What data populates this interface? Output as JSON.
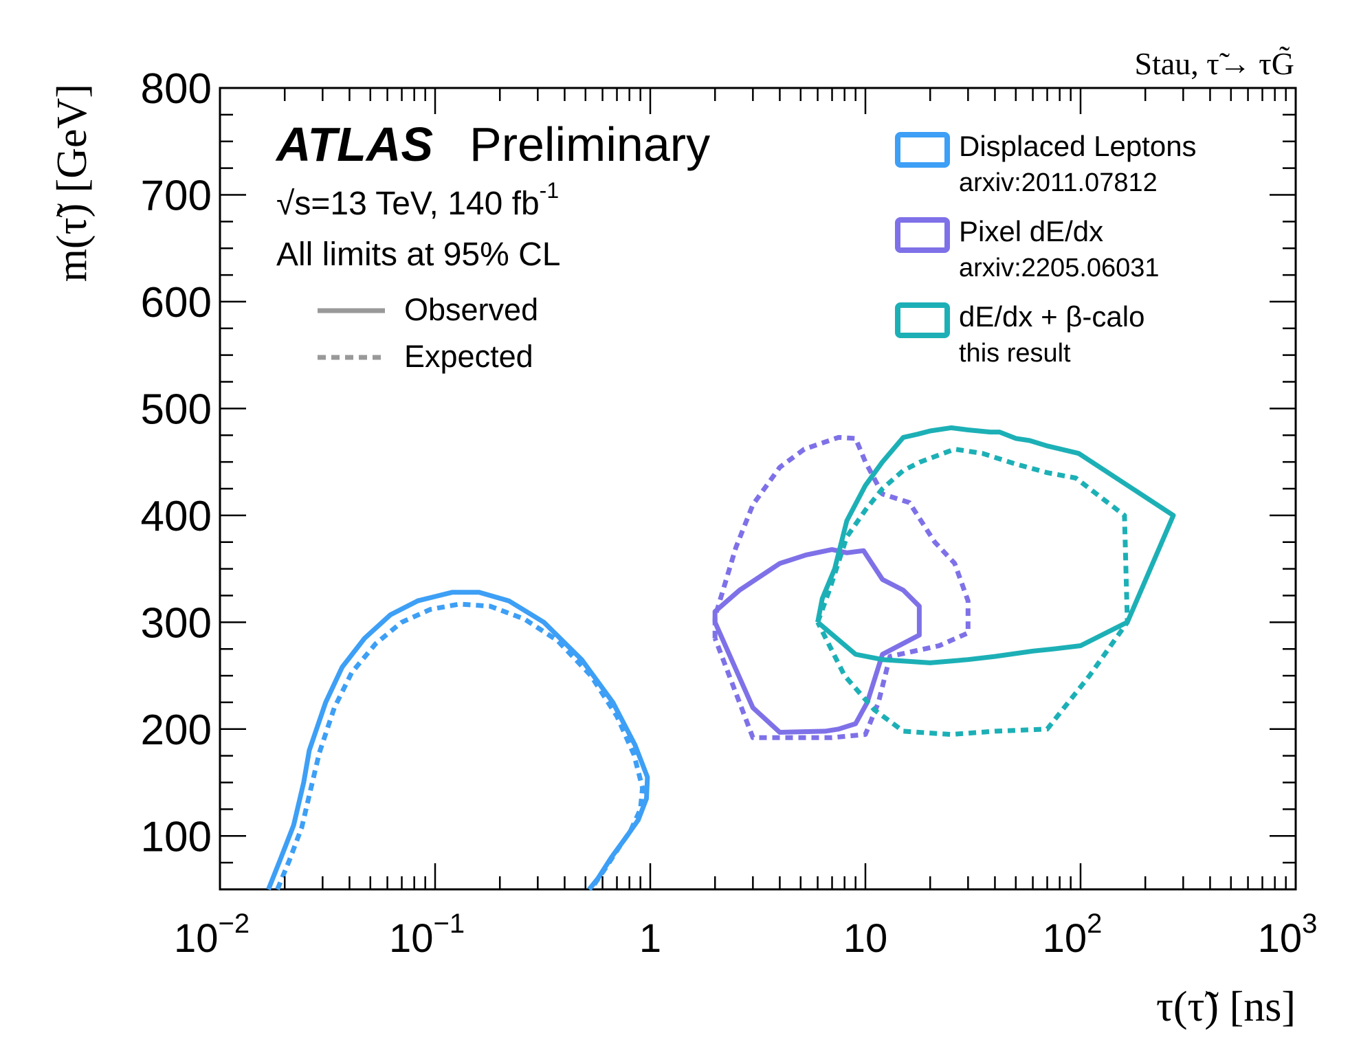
{
  "chart_data": {
    "type": "line",
    "title": "Stau, τ̃→ τG̃",
    "xlabel": "τ(τ̃) [ns]",
    "ylabel": "m(τ̃) [GeV]",
    "xscale": "log",
    "xlim": [
      0.01,
      1000
    ],
    "ylim": [
      50,
      800
    ],
    "x_tick_labels": [
      {
        "value": 0.01,
        "base": "10",
        "exp": "−2"
      },
      {
        "value": 0.1,
        "base": "10",
        "exp": "−1"
      },
      {
        "value": 1,
        "base": "1",
        "exp": ""
      },
      {
        "value": 10,
        "base": "10",
        "exp": ""
      },
      {
        "value": 100,
        "base": "10",
        "exp": "2"
      },
      {
        "value": 1000,
        "base": "10",
        "exp": "3"
      }
    ],
    "y_ticks": [
      100,
      200,
      300,
      400,
      500,
      600,
      700,
      800
    ],
    "atlas_label": "ATLAS",
    "atlas_sublabel": "Preliminary",
    "energy_text": "s=13 TeV, 140 fb",
    "energy_sqrt": "√",
    "energy_sup": "-1",
    "cl_text": "All limits at 95% CL",
    "style_legend": [
      {
        "label": "Observed",
        "style": "solid"
      },
      {
        "label": "Expected",
        "style": "dotted"
      }
    ],
    "series_legend": [
      {
        "label": "Displaced Leptons",
        "sublabel": "arxiv:2011.07812",
        "color": "#3d9ff5"
      },
      {
        "label": "Pixel dE/dx",
        "sublabel": "arxiv:2205.06031",
        "color": "#7e71e8"
      },
      {
        "label": "dE/dx + β-calo",
        "sublabel": "this result",
        "color": "#1cb0b6"
      }
    ],
    "series": [
      {
        "name": "Displaced Leptons observed",
        "color": "#3d9ff5",
        "style": "solid",
        "points": [
          [
            0.0168,
            50
          ],
          [
            0.019,
            77
          ],
          [
            0.022,
            110
          ],
          [
            0.0245,
            150
          ],
          [
            0.026,
            180
          ],
          [
            0.031,
            225
          ],
          [
            0.037,
            258
          ],
          [
            0.047,
            285
          ],
          [
            0.062,
            307
          ],
          [
            0.083,
            320
          ],
          [
            0.12,
            328
          ],
          [
            0.16,
            328
          ],
          [
            0.22,
            320
          ],
          [
            0.32,
            300
          ],
          [
            0.48,
            265
          ],
          [
            0.67,
            225
          ],
          [
            0.85,
            185
          ],
          [
            0.97,
            155
          ],
          [
            0.96,
            135
          ],
          [
            0.88,
            115
          ],
          [
            0.78,
            100
          ],
          [
            0.66,
            80
          ],
          [
            0.57,
            60
          ],
          [
            0.52,
            50
          ]
        ]
      },
      {
        "name": "Displaced Leptons expected",
        "color": "#3d9ff5",
        "style": "dotted",
        "points": [
          [
            0.0185,
            50
          ],
          [
            0.021,
            77
          ],
          [
            0.024,
            108
          ],
          [
            0.0265,
            145
          ],
          [
            0.029,
            178
          ],
          [
            0.034,
            220
          ],
          [
            0.041,
            253
          ],
          [
            0.053,
            280
          ],
          [
            0.07,
            300
          ],
          [
            0.095,
            312
          ],
          [
            0.13,
            317
          ],
          [
            0.18,
            315
          ],
          [
            0.26,
            303
          ],
          [
            0.37,
            283
          ],
          [
            0.53,
            250
          ],
          [
            0.7,
            212
          ],
          [
            0.84,
            176
          ],
          [
            0.92,
            145
          ],
          [
            0.9,
            125
          ],
          [
            0.81,
            105
          ],
          [
            0.72,
            90
          ],
          [
            0.62,
            70
          ],
          [
            0.53,
            50
          ]
        ]
      },
      {
        "name": "Pixel dE/dx observed",
        "color": "#7e71e8",
        "style": "solid",
        "points": [
          [
            2.0,
            300
          ],
          [
            2.0,
            310
          ],
          [
            2.6,
            330
          ],
          [
            4.0,
            355
          ],
          [
            5.3,
            363
          ],
          [
            7.0,
            368
          ],
          [
            8.2,
            365
          ],
          [
            9.8,
            367
          ],
          [
            12,
            340
          ],
          [
            15,
            330
          ],
          [
            17.8,
            315
          ],
          [
            17.8,
            288
          ],
          [
            12,
            270
          ],
          [
            10.2,
            225
          ],
          [
            9.0,
            205
          ],
          [
            7.5,
            200
          ],
          [
            6.5,
            198
          ],
          [
            4.0,
            197
          ],
          [
            3.0,
            220
          ],
          [
            2.0,
            300
          ]
        ]
      },
      {
        "name": "Pixel dE/dx expected",
        "color": "#7e71e8",
        "style": "dotted",
        "points": [
          [
            2.0,
            285
          ],
          [
            2.0,
            305
          ],
          [
            2.5,
            370
          ],
          [
            3.0,
            410
          ],
          [
            4.0,
            445
          ],
          [
            5.2,
            462
          ],
          [
            7.5,
            473
          ],
          [
            9.0,
            472
          ],
          [
            10,
            450
          ],
          [
            12,
            420
          ],
          [
            16,
            412
          ],
          [
            21,
            375
          ],
          [
            26,
            355
          ],
          [
            30,
            320
          ],
          [
            30,
            290
          ],
          [
            22,
            278
          ],
          [
            13,
            268
          ],
          [
            11.5,
            225
          ],
          [
            10,
            195
          ],
          [
            7,
            192
          ],
          [
            5,
            192
          ],
          [
            3,
            192
          ],
          [
            2.0,
            285
          ]
        ]
      },
      {
        "name": "dE/dx + beta-calo observed",
        "color": "#1cb0b6",
        "style": "solid",
        "points": [
          [
            6,
            300
          ],
          [
            6.3,
            322
          ],
          [
            7.2,
            350
          ],
          [
            8.2,
            395
          ],
          [
            10,
            428
          ],
          [
            12,
            450
          ],
          [
            15,
            473
          ],
          [
            17.5,
            476
          ],
          [
            20,
            479
          ],
          [
            25,
            482
          ],
          [
            30,
            480
          ],
          [
            38,
            478
          ],
          [
            42,
            478
          ],
          [
            50,
            472
          ],
          [
            58,
            470
          ],
          [
            70,
            465
          ],
          [
            98,
            458
          ],
          [
            270,
            400
          ],
          [
            165,
            300
          ],
          [
            100,
            278
          ],
          [
            75,
            275
          ],
          [
            60,
            273
          ],
          [
            40,
            268
          ],
          [
            30,
            265
          ],
          [
            20,
            262
          ],
          [
            12,
            265
          ],
          [
            9,
            270
          ],
          [
            6,
            300
          ]
        ]
      },
      {
        "name": "dE/dx + beta-calo expected",
        "color": "#1cb0b6",
        "style": "dotted",
        "points": [
          [
            6.0,
            300
          ],
          [
            6.8,
            330
          ],
          [
            8.2,
            380
          ],
          [
            10,
            405
          ],
          [
            12,
            425
          ],
          [
            15,
            442
          ],
          [
            18,
            450
          ],
          [
            23,
            458
          ],
          [
            26,
            462
          ],
          [
            35,
            458
          ],
          [
            50,
            448
          ],
          [
            70,
            440
          ],
          [
            95,
            435
          ],
          [
            160,
            400
          ],
          [
            165,
            300
          ],
          [
            110,
            250
          ],
          [
            70,
            200
          ],
          [
            40,
            198
          ],
          [
            25,
            195
          ],
          [
            15,
            198
          ],
          [
            11,
            218
          ],
          [
            8,
            250
          ],
          [
            6.0,
            300
          ]
        ]
      }
    ]
  }
}
